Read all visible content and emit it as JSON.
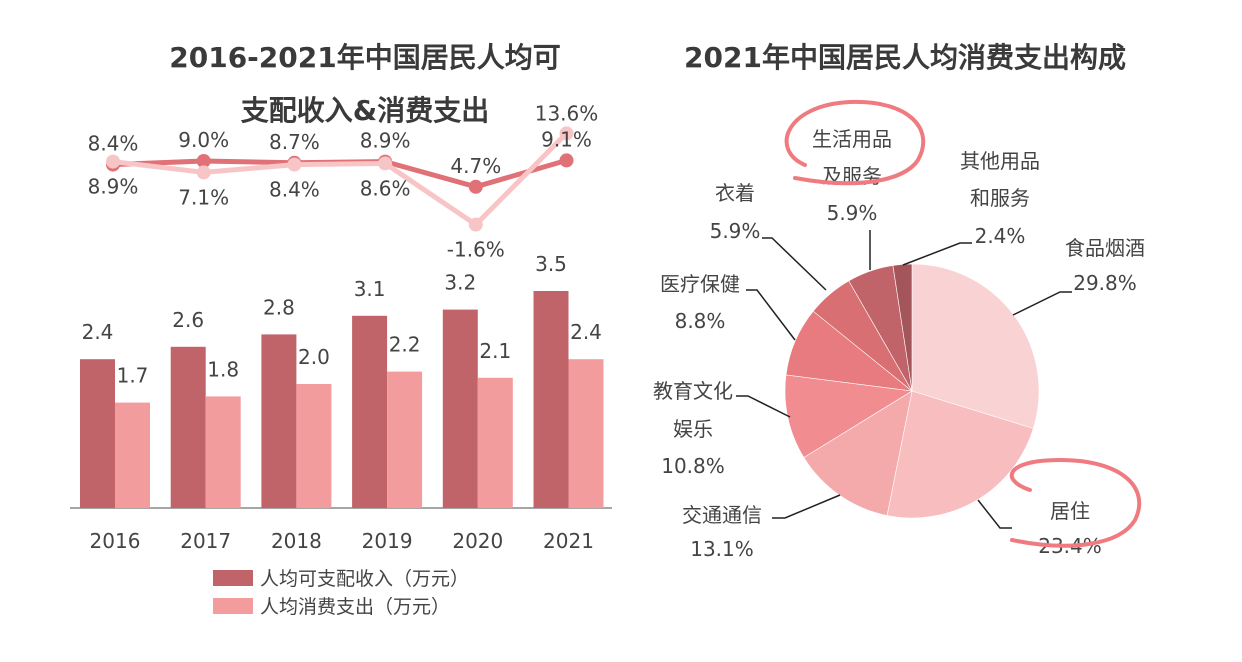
{
  "chart_data": [
    {
      "type": "bar",
      "title_lines": [
        "2016-2021年中国居民人均可",
        "支配收入&消费支出"
      ],
      "categories": [
        "2016",
        "2017",
        "2018",
        "2019",
        "2020",
        "2021"
      ],
      "series": [
        {
          "name": "人均可支配收入（万元）",
          "values": [
            2.4,
            2.6,
            2.8,
            3.1,
            3.2,
            3.5
          ],
          "color": "#c0646a",
          "labels": [
            "2.4",
            "2.6",
            "2.8",
            "3.1",
            "3.2",
            "3.5"
          ]
        },
        {
          "name": "人均消费支出（万元）",
          "values": [
            1.7,
            1.8,
            2.0,
            2.2,
            2.1,
            2.4
          ],
          "color": "#f39c9e",
          "labels": [
            "1.7",
            "1.8",
            "2.0",
            "2.2",
            "2.1",
            "2.4"
          ]
        }
      ],
      "line_series": [
        {
          "values": [
            8.4,
            9.0,
            8.7,
            8.9,
            4.7,
            9.1
          ],
          "unit": "%",
          "color": "#e07176",
          "labels": [
            "8.4%",
            "9.0%",
            "8.7%",
            "8.9%",
            "4.7%",
            "9.1%"
          ]
        },
        {
          "values": [
            8.9,
            7.1,
            8.4,
            8.6,
            -1.6,
            13.6
          ],
          "unit": "%",
          "color": "#f8c5c7",
          "labels": [
            "8.9%",
            "7.1%",
            "8.4%",
            "8.6%",
            "-1.6%",
            "13.6%"
          ]
        }
      ],
      "legend_position": "bottom",
      "grid": false
    },
    {
      "type": "pie",
      "title": "2021年中国居民人均消费支出构成",
      "slices": [
        {
          "label_lines": [
            "食品烟酒"
          ],
          "value": 29.8,
          "label": "29.8%",
          "color": "#f9d2d3",
          "highlighted": false
        },
        {
          "label_lines": [
            "居住"
          ],
          "value": 23.4,
          "label": "23.4%",
          "color": "#f7bdbf",
          "highlighted": true
        },
        {
          "label_lines": [
            "交通通信"
          ],
          "value": 13.1,
          "label": "13.1%",
          "color": "#f4a9ab",
          "highlighted": false
        },
        {
          "label_lines": [
            "教育文化",
            "娱乐"
          ],
          "value": 10.8,
          "label": "10.8%",
          "color": "#f18d90",
          "highlighted": false
        },
        {
          "label_lines": [
            "医疗保健"
          ],
          "value": 8.8,
          "label": "8.8%",
          "color": "#e87b7f",
          "highlighted": false
        },
        {
          "label_lines": [
            "衣着"
          ],
          "value": 5.9,
          "label": "5.9%",
          "color": "#d86f73",
          "highlighted": false
        },
        {
          "label_lines": [
            "生活用品",
            "及服务"
          ],
          "value": 5.9,
          "label": "5.9%",
          "color": "#c1646a",
          "highlighted": true
        },
        {
          "label_lines": [
            "其他用品",
            "和服务"
          ],
          "value": 2.4,
          "label": "2.4%",
          "color": "#a4555a",
          "highlighted": false
        }
      ],
      "highlight_color": "#ef7b80"
    }
  ]
}
